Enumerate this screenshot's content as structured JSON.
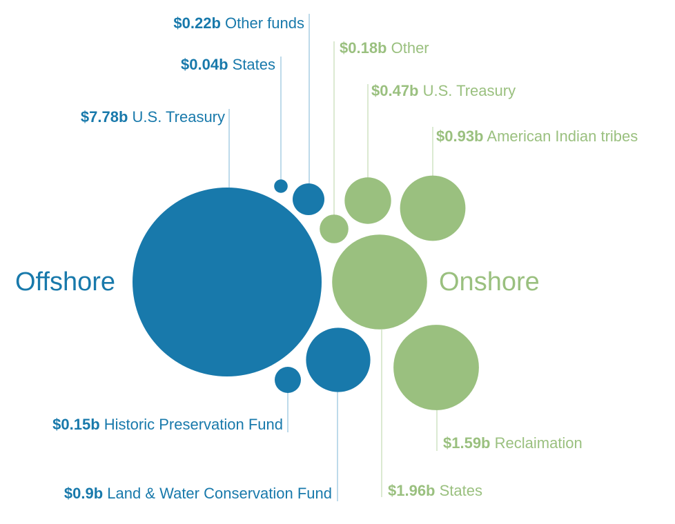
{
  "colors": {
    "offshore": "#1879ab",
    "onshore": "#9ac07f",
    "offshore_line": "#a7cde3",
    "onshore_line": "#cfe2c2"
  },
  "chart_data": {
    "type": "bubble",
    "unit": "b",
    "groups": [
      {
        "name": "Offshore",
        "color": "offshore",
        "items": [
          {
            "amount": "$7.78b",
            "label": "U.S. Treasury",
            "value": 7.78
          },
          {
            "amount": "$0.04b",
            "label": "States",
            "value": 0.04
          },
          {
            "amount": "$0.22b",
            "label": "Other funds",
            "value": 0.22
          },
          {
            "amount": "$0.15b",
            "label": "Historic Preservation Fund",
            "value": 0.15
          },
          {
            "amount": "$0.9b",
            "label": "Land & Water Conservation Fund",
            "value": 0.9
          }
        ]
      },
      {
        "name": "Onshore",
        "color": "onshore",
        "items": [
          {
            "amount": "$0.18b",
            "label": "Other",
            "value": 0.18
          },
          {
            "amount": "$0.47b",
            "label": "U.S. Treasury",
            "value": 0.47
          },
          {
            "amount": "$0.93b",
            "label": "American Indian tribes",
            "value": 0.93
          },
          {
            "amount": "$1.96b",
            "label": "States",
            "value": 1.96
          },
          {
            "amount": "$1.59b",
            "label": "Reclaimation",
            "value": 1.59
          }
        ]
      }
    ]
  }
}
